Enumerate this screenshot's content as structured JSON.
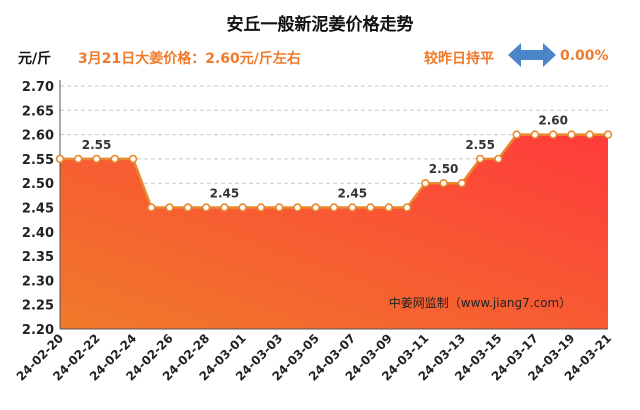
{
  "header": {
    "title": "安丘一般新泥姜价格走势",
    "unit": "元/斤",
    "price_text": "3月21日大姜价格：2.60元/斤左右",
    "compare_text": "较昨日持平",
    "change_text": "0.00%",
    "change_icon": "double-arrow-icon"
  },
  "colors": {
    "accent": "#f07a2a",
    "line": "#e8892f",
    "fill_top": "#ff3b3b",
    "fill_bottom": "#f07a2a",
    "arrow": "#4a86c8"
  },
  "chart_data": {
    "type": "area",
    "x": [
      "24-02-20",
      "24-02-21",
      "24-02-22",
      "24-02-23",
      "24-02-24",
      "24-02-25",
      "24-02-26",
      "24-02-27",
      "24-02-28",
      "24-02-29",
      "24-03-01",
      "24-03-02",
      "24-03-03",
      "24-03-04",
      "24-03-05",
      "24-03-06",
      "24-03-07",
      "24-03-08",
      "24-03-09",
      "24-03-10",
      "24-03-11",
      "24-03-12",
      "24-03-13",
      "24-03-14",
      "24-03-15",
      "24-03-16",
      "24-03-17",
      "24-03-18",
      "24-03-19",
      "24-03-20",
      "24-03-21"
    ],
    "x_tick_labels": [
      "24-02-20",
      "24-02-22",
      "24-02-24",
      "24-02-26",
      "24-02-28",
      "24-03-01",
      "24-03-03",
      "24-03-05",
      "24-03-07",
      "24-03-09",
      "24-03-11",
      "24-03-13",
      "24-03-15",
      "24-03-17",
      "24-03-19",
      "24-03-21"
    ],
    "values": [
      2.55,
      2.55,
      2.55,
      2.55,
      2.55,
      2.45,
      2.45,
      2.45,
      2.45,
      2.45,
      2.45,
      2.45,
      2.45,
      2.45,
      2.45,
      2.45,
      2.45,
      2.45,
      2.45,
      2.45,
      2.5,
      2.5,
      2.5,
      2.55,
      2.55,
      2.6,
      2.6,
      2.6,
      2.6,
      2.6,
      2.6
    ],
    "ylim": [
      2.2,
      2.7
    ],
    "y_ticks": [
      "2.20",
      "2.25",
      "2.30",
      "2.35",
      "2.40",
      "2.45",
      "2.50",
      "2.55",
      "2.60",
      "2.65",
      "2.70"
    ],
    "ylabel": "元/斤",
    "grid": true,
    "annotations": [
      {
        "index": 2,
        "text": "2.55"
      },
      {
        "index": 9,
        "text": "2.45"
      },
      {
        "index": 16,
        "text": "2.45"
      },
      {
        "index": 21,
        "text": "2.50"
      },
      {
        "index": 23,
        "text": "2.55"
      },
      {
        "index": 27,
        "text": "2.60"
      }
    ],
    "watermark": "中姜网监制（www.jiang7.com）"
  }
}
